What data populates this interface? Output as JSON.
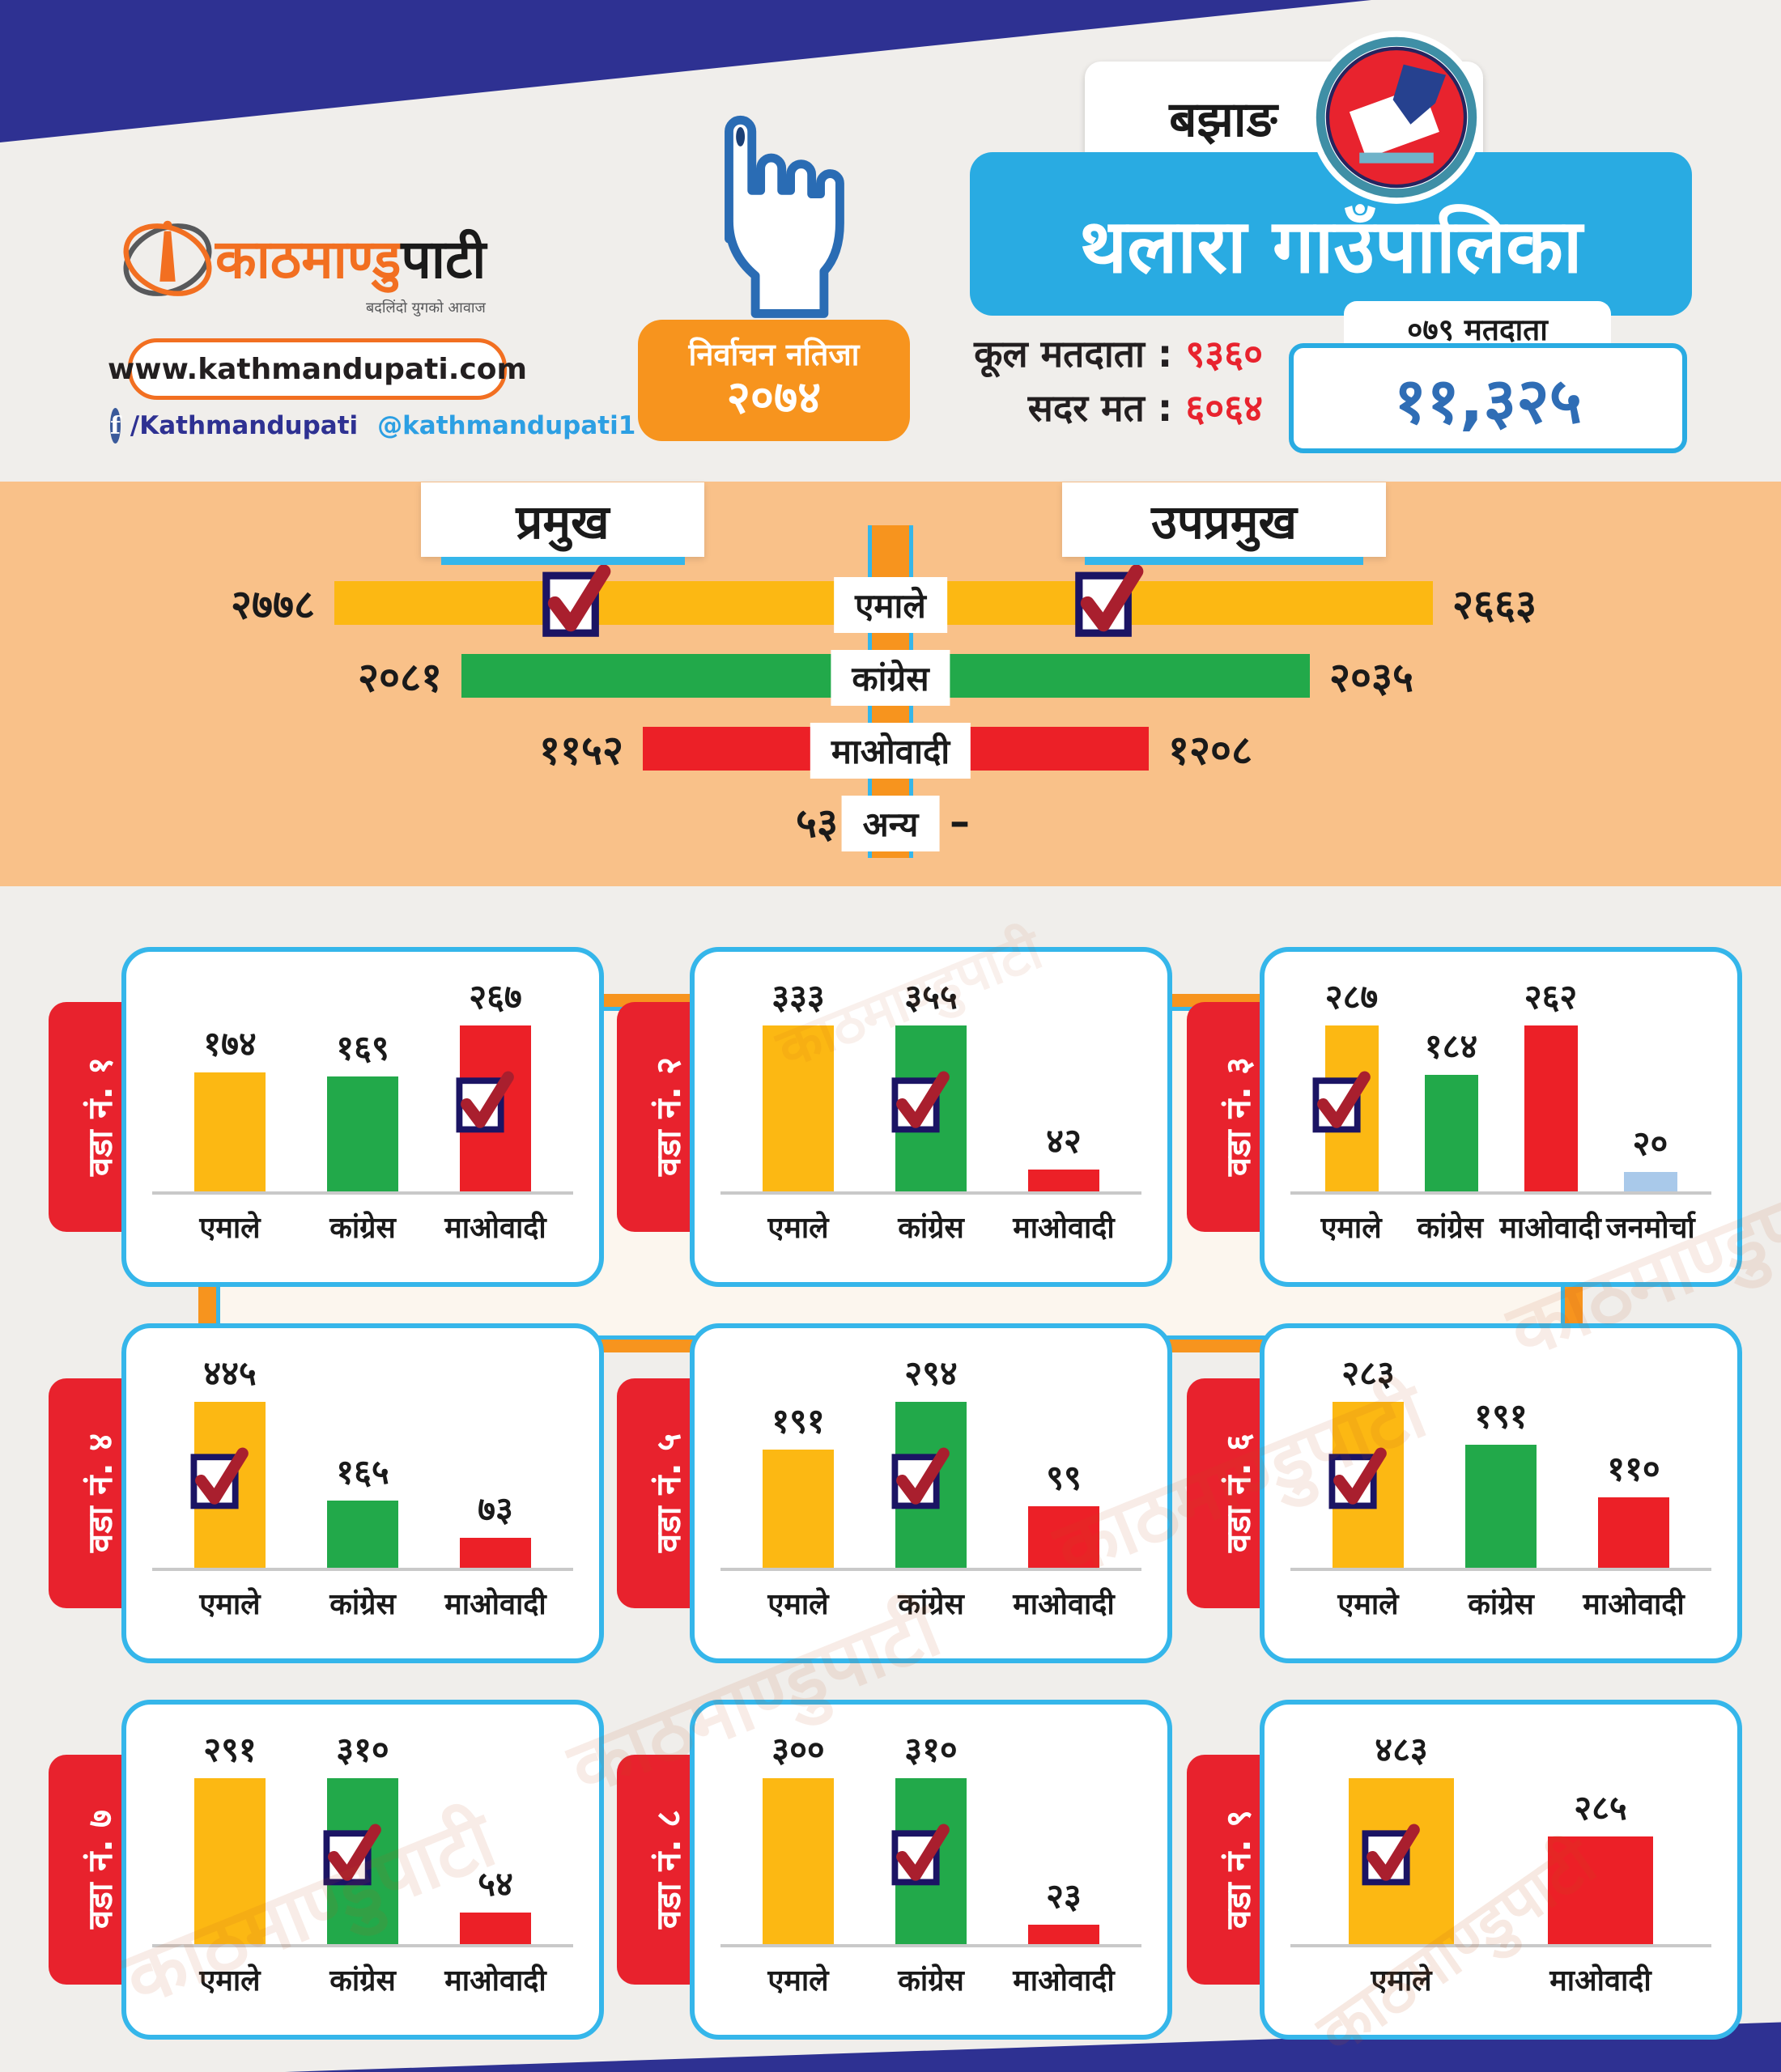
{
  "header": {
    "brand": {
      "logo_orange": "काठमाण्डु",
      "logo_black": "पाटी",
      "tagline": "बदलिंदो युगको आवाज",
      "website": "www.kathmandupati.com",
      "facebook": "/Kathmandupati",
      "twitter": "@kathmandupati1"
    },
    "result_badge": {
      "line1": "निर्वाचन नतिजा",
      "year": "२०७४"
    },
    "district": "बझाङ",
    "municipality": "थलारा गाउँपालिका",
    "stats": [
      {
        "label": "कूल मतदाता",
        "value": "९३६०"
      },
      {
        "label": "सदर मत",
        "value": "६०६४"
      }
    ],
    "voters_tab": "०७९ मतदाता",
    "voters_total": "११,३२५"
  },
  "watermark_text": "काठमाण्डुपाटी",
  "colors": {
    "emale": "#fcb813",
    "congress": "#22a94a",
    "maobadi": "#ec2027",
    "janamorcha": "#a9c9ea",
    "anya": "#7e57a5",
    "accent_blue": "#35b6ea",
    "navy": "#2e3192",
    "orange": "#f7941e",
    "red": "#e8232e",
    "total_blue": "#2f6db5"
  },
  "chart_data": {
    "type": "bar",
    "main": {
      "scale_max": 2780,
      "categories": [
        "एमाले",
        "कांग्रेस",
        "माओवादी",
        "अन्य"
      ],
      "panels": [
        {
          "title": "प्रमुख",
          "side": "left",
          "bars": [
            {
              "party": "emale",
              "label": "एमाले",
              "value": 2778,
              "display": "२७७८",
              "checked": true
            },
            {
              "party": "congress",
              "label": "कांग्रेस",
              "value": 2081,
              "display": "२०८१",
              "checked": false
            },
            {
              "party": "maobadi",
              "label": "माओवादी",
              "value": 1152,
              "display": "११५२",
              "checked": false
            },
            {
              "party": "anya",
              "label": "अन्य",
              "value": 53,
              "display": "५३",
              "checked": false
            }
          ]
        },
        {
          "title": "उपप्रमुख",
          "side": "right",
          "bars": [
            {
              "party": "emale",
              "label": "एमाले",
              "value": 2663,
              "display": "२६६३",
              "checked": true
            },
            {
              "party": "congress",
              "label": "कांग्रेस",
              "value": 2035,
              "display": "२०३५",
              "checked": false
            },
            {
              "party": "maobadi",
              "label": "माओवादी",
              "value": 1208,
              "display": "१२०८",
              "checked": false
            },
            {
              "party": "anya",
              "label": "अन्य",
              "value": 0,
              "display": "–",
              "checked": false
            }
          ]
        }
      ]
    },
    "wards": [
      {
        "label": "वडा नं. १",
        "bars": [
          {
            "party": "emale",
            "label": "एमाले",
            "value": 174,
            "display": "१७४",
            "checked": false
          },
          {
            "party": "congress",
            "label": "कांग्रेस",
            "value": 169,
            "display": "१६९",
            "checked": false
          },
          {
            "party": "maobadi",
            "label": "माओवादी",
            "value": 267,
            "display": "२६७",
            "checked": true
          }
        ]
      },
      {
        "label": "वडा नं. २",
        "bars": [
          {
            "party": "emale",
            "label": "एमाले",
            "value": 333,
            "display": "३३३",
            "checked": false
          },
          {
            "party": "congress",
            "label": "कांग्रेस",
            "value": 355,
            "display": "३५५",
            "checked": true
          },
          {
            "party": "maobadi",
            "label": "माओवादी",
            "value": 42,
            "display": "४२",
            "checked": false
          }
        ]
      },
      {
        "label": "वडा नं. ३",
        "bars": [
          {
            "party": "emale",
            "label": "एमाले",
            "value": 287,
            "display": "२८७",
            "checked": true
          },
          {
            "party": "congress",
            "label": "कांग्रेस",
            "value": 184,
            "display": "१८४",
            "checked": false
          },
          {
            "party": "maobadi",
            "label": "माओवादी",
            "value": 262,
            "display": "२६२",
            "checked": false
          },
          {
            "party": "janamorcha",
            "label": "जनमोर्चा",
            "value": 20,
            "display": "२०",
            "checked": false
          }
        ]
      },
      {
        "label": "वडा नं. ४",
        "bars": [
          {
            "party": "emale",
            "label": "एमाले",
            "value": 445,
            "display": "४४५",
            "checked": true
          },
          {
            "party": "congress",
            "label": "कांग्रेस",
            "value": 165,
            "display": "१६५",
            "checked": false
          },
          {
            "party": "maobadi",
            "label": "माओवादी",
            "value": 73,
            "display": "७३",
            "checked": false
          }
        ]
      },
      {
        "label": "वडा नं. ५",
        "bars": [
          {
            "party": "emale",
            "label": "एमाले",
            "value": 191,
            "display": "१९१",
            "checked": false
          },
          {
            "party": "congress",
            "label": "कांग्रेस",
            "value": 294,
            "display": "२९४",
            "checked": true
          },
          {
            "party": "maobadi",
            "label": "माओवादी",
            "value": 99,
            "display": "९९",
            "checked": false
          }
        ]
      },
      {
        "label": "वडा नं. ६",
        "bars": [
          {
            "party": "emale",
            "label": "एमाले",
            "value": 283,
            "display": "२८३",
            "checked": true
          },
          {
            "party": "congress",
            "label": "कांग्रेस",
            "value": 191,
            "display": "१९१",
            "checked": false
          },
          {
            "party": "maobadi",
            "label": "माओवादी",
            "value": 110,
            "display": "११०",
            "checked": false
          }
        ]
      },
      {
        "label": "वडा नं. ७",
        "bars": [
          {
            "party": "emale",
            "label": "एमाले",
            "value": 291,
            "display": "२९१",
            "checked": false
          },
          {
            "party": "congress",
            "label": "कांग्रेस",
            "value": 310,
            "display": "३१०",
            "checked": true
          },
          {
            "party": "maobadi",
            "label": "माओवादी",
            "value": 54,
            "display": "५४",
            "checked": false
          }
        ]
      },
      {
        "label": "वडा नं. ८",
        "bars": [
          {
            "party": "emale",
            "label": "एमाले",
            "value": 300,
            "display": "३००",
            "checked": false
          },
          {
            "party": "congress",
            "label": "कांग्रेस",
            "value": 310,
            "display": "३१०",
            "checked": true
          },
          {
            "party": "maobadi",
            "label": "माओवादी",
            "value": 23,
            "display": "२३",
            "checked": false
          }
        ]
      },
      {
        "label": "वडा नं. ९",
        "bars": [
          {
            "party": "emale",
            "label": "एमाले",
            "value": 483,
            "display": "४८३",
            "checked": true
          },
          {
            "party": "maobadi",
            "label": "माओवादी",
            "value": 285,
            "display": "२८५",
            "checked": false
          }
        ]
      }
    ]
  }
}
